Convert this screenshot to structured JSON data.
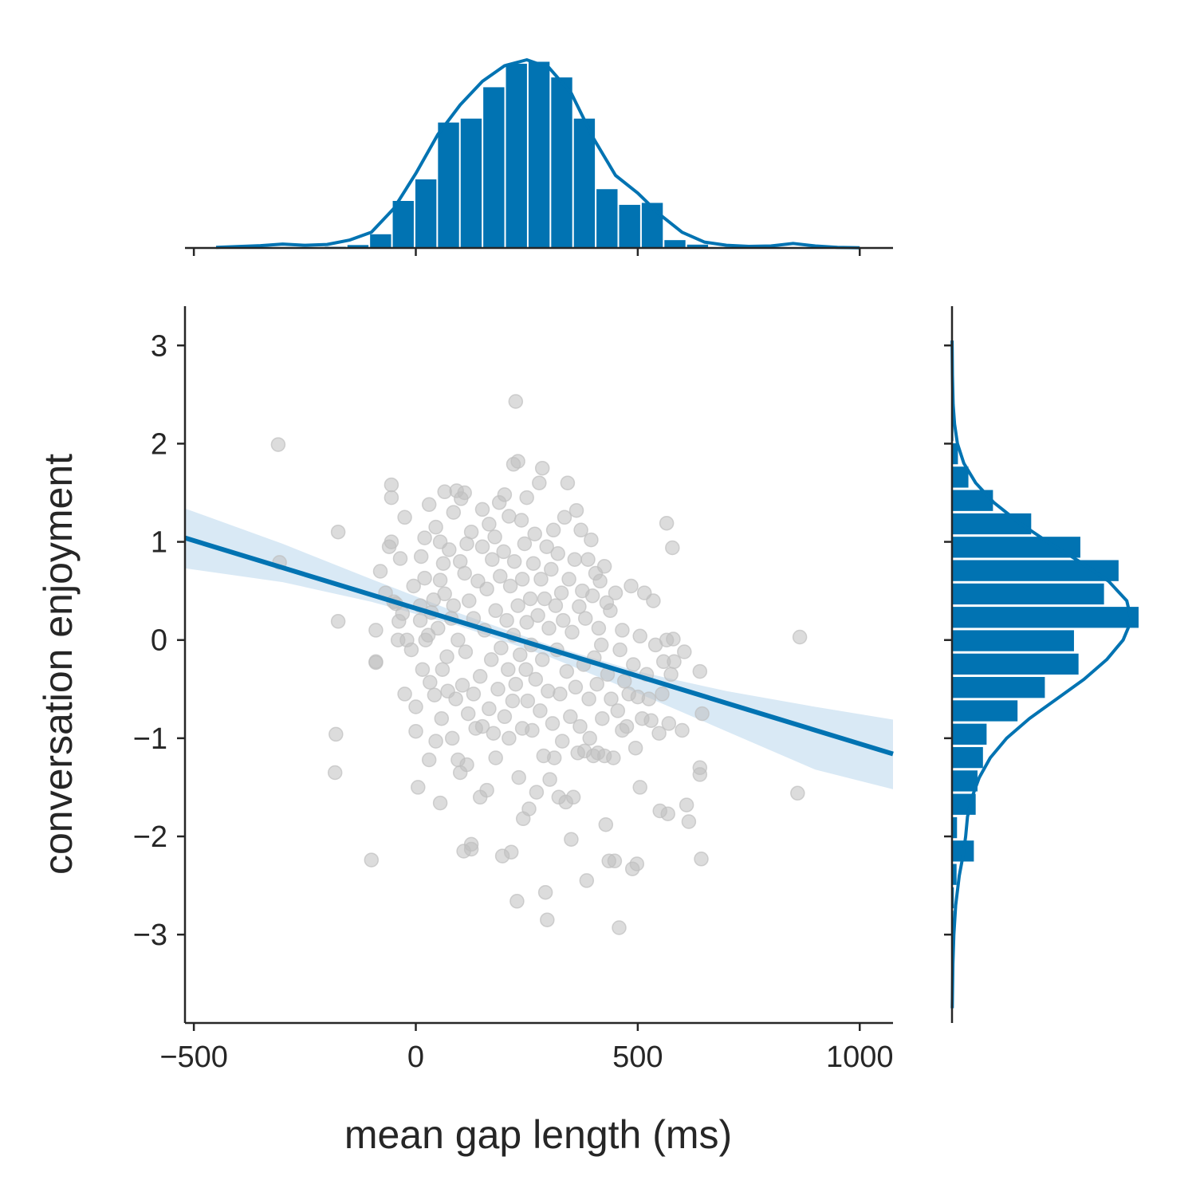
{
  "chart_data": {
    "type": "scatter",
    "xlabel": "mean gap length (ms)",
    "ylabel": "conversation enjoyment",
    "xlim": [
      -520,
      1075
    ],
    "ylim": [
      -3.9,
      3.4
    ],
    "xticks": [
      -500,
      0,
      500,
      1000
    ],
    "yticks": [
      -3,
      -2,
      -1,
      0,
      1,
      2,
      3
    ],
    "xtick_labels": [
      "−500",
      "0",
      "500",
      "1000"
    ],
    "ytick_labels": [
      "−3",
      "−2",
      "−1",
      "0",
      "1",
      "2",
      "3"
    ],
    "grid": false,
    "legend": "none",
    "colors": {
      "accent": "#0173b2",
      "points": "#bfbfbf",
      "band": "#cfe3f3",
      "axis": "#262626"
    },
    "scatter_points": [
      [
        -310,
        1.99
      ],
      [
        -307,
        0.79
      ],
      [
        -175,
        1.1
      ],
      [
        -180,
        -0.96
      ],
      [
        -182,
        -1.35
      ],
      [
        -175,
        0.19
      ],
      [
        -100,
        -2.24
      ],
      [
        -90,
        0.1
      ],
      [
        -90,
        -0.22
      ],
      [
        -90,
        -0.23
      ],
      [
        -80,
        0.7
      ],
      [
        -68,
        0.48
      ],
      [
        -60,
        0.95
      ],
      [
        -55,
        1.0
      ],
      [
        -55,
        1.58
      ],
      [
        -55,
        1.45
      ],
      [
        -50,
        0.39
      ],
      [
        -45,
        0.37
      ],
      [
        -40,
        -0.0
      ],
      [
        -38,
        0.19
      ],
      [
        -35,
        0.83
      ],
      [
        -30,
        0.27
      ],
      [
        -25,
        1.25
      ],
      [
        -25,
        -0.55
      ],
      [
        -20,
        0.0
      ],
      [
        -10,
        -0.1
      ],
      [
        -5,
        0.55
      ],
      [
        0,
        -0.68
      ],
      [
        0,
        -0.93
      ],
      [
        5,
        -1.5
      ],
      [
        10,
        0.35
      ],
      [
        10,
        0.2
      ],
      [
        12,
        0.85
      ],
      [
        15,
        -0.3
      ],
      [
        20,
        1.04
      ],
      [
        20,
        0.63
      ],
      [
        22,
        -0.0
      ],
      [
        28,
        0.05
      ],
      [
        30,
        -1.22
      ],
      [
        30,
        1.38
      ],
      [
        32,
        -0.43
      ],
      [
        35,
        0.28
      ],
      [
        40,
        0.41
      ],
      [
        42,
        -0.56
      ],
      [
        45,
        1.15
      ],
      [
        45,
        -1.03
      ],
      [
        50,
        0.12
      ],
      [
        55,
        0.61
      ],
      [
        55,
        -1.66
      ],
      [
        55,
        1.0
      ],
      [
        58,
        -0.8
      ],
      [
        60,
        -0.3
      ],
      [
        62,
        0.78
      ],
      [
        65,
        1.51
      ],
      [
        65,
        0.47
      ],
      [
        70,
        -0.17
      ],
      [
        72,
        -0.52
      ],
      [
        75,
        0.92
      ],
      [
        80,
        0.22
      ],
      [
        82,
        -1.0
      ],
      [
        85,
        1.3
      ],
      [
        85,
        0.35
      ],
      [
        90,
        -0.6
      ],
      [
        92,
        1.52
      ],
      [
        95,
        0.0
      ],
      [
        95,
        -1.22
      ],
      [
        100,
        0.8
      ],
      [
        100,
        -1.35
      ],
      [
        102,
        1.44
      ],
      [
        105,
        -0.46
      ],
      [
        108,
        -2.15
      ],
      [
        110,
        0.68
      ],
      [
        110,
        1.5
      ],
      [
        112,
        -0.12
      ],
      [
        115,
        -1.27
      ],
      [
        115,
        0.98
      ],
      [
        118,
        -0.75
      ],
      [
        120,
        0.4
      ],
      [
        125,
        -2.08
      ],
      [
        125,
        -2.13
      ],
      [
        125,
        1.1
      ],
      [
        130,
        -0.55
      ],
      [
        130,
        0.22
      ],
      [
        135,
        -0.9
      ],
      [
        140,
        0.6
      ],
      [
        145,
        -0.37
      ],
      [
        145,
        -1.6
      ],
      [
        150,
        0.95
      ],
      [
        150,
        1.33
      ],
      [
        150,
        -0.88
      ],
      [
        155,
        0.1
      ],
      [
        160,
        -1.53
      ],
      [
        160,
        0.52
      ],
      [
        165,
        -0.7
      ],
      [
        165,
        1.18
      ],
      [
        170,
        -0.2
      ],
      [
        172,
        0.82
      ],
      [
        175,
        -0.95
      ],
      [
        178,
        1.05
      ],
      [
        180,
        0.3
      ],
      [
        180,
        -1.2
      ],
      [
        185,
        -0.5
      ],
      [
        188,
        1.4
      ],
      [
        190,
        0.65
      ],
      [
        192,
        -0.08
      ],
      [
        195,
        -2.2
      ],
      [
        198,
        0.9
      ],
      [
        200,
        -0.78
      ],
      [
        200,
        1.48
      ],
      [
        205,
        0.2
      ],
      [
        208,
        -0.3
      ],
      [
        210,
        1.26
      ],
      [
        210,
        -1.0
      ],
      [
        213,
        0.55
      ],
      [
        215,
        -2.16
      ],
      [
        218,
        -0.62
      ],
      [
        220,
        1.79
      ],
      [
        220,
        0.05
      ],
      [
        222,
        0.8
      ],
      [
        225,
        -0.45
      ],
      [
        225,
        2.43
      ],
      [
        228,
        -2.66
      ],
      [
        230,
        1.82
      ],
      [
        230,
        0.35
      ],
      [
        232,
        -1.4
      ],
      [
        235,
        -0.15
      ],
      [
        238,
        1.22
      ],
      [
        240,
        0.62
      ],
      [
        240,
        -0.9
      ],
      [
        242,
        -1.82
      ],
      [
        245,
        0.98
      ],
      [
        248,
        -0.3
      ],
      [
        250,
        0.18
      ],
      [
        250,
        1.45
      ],
      [
        252,
        -0.62
      ],
      [
        255,
        -1.72
      ],
      [
        258,
        0.42
      ],
      [
        260,
        -0.05
      ],
      [
        262,
        -0.92
      ],
      [
        265,
        0.78
      ],
      [
        268,
        1.08
      ],
      [
        270,
        -0.4
      ],
      [
        272,
        -1.55
      ],
      [
        275,
        0.25
      ],
      [
        278,
        1.6
      ],
      [
        280,
        -0.72
      ],
      [
        282,
        0.62
      ],
      [
        285,
        -0.2
      ],
      [
        285,
        1.75
      ],
      [
        288,
        -1.18
      ],
      [
        290,
        0.42
      ],
      [
        292,
        -2.57
      ],
      [
        295,
        0.95
      ],
      [
        296,
        -2.85
      ],
      [
        298,
        -0.52
      ],
      [
        300,
        0.12
      ],
      [
        302,
        -1.42
      ],
      [
        305,
        0.72
      ],
      [
        308,
        -0.85
      ],
      [
        310,
        1.12
      ],
      [
        312,
        -1.2
      ],
      [
        315,
        0.35
      ],
      [
        318,
        -0.1
      ],
      [
        320,
        0.88
      ],
      [
        322,
        -1.6
      ],
      [
        325,
        -0.55
      ],
      [
        328,
        0.48
      ],
      [
        330,
        -1.03
      ],
      [
        332,
        0.2
      ],
      [
        335,
        1.25
      ],
      [
        338,
        -1.65
      ],
      [
        340,
        -0.32
      ],
      [
        342,
        1.6
      ],
      [
        345,
        0.62
      ],
      [
        348,
        -0.78
      ],
      [
        350,
        -2.03
      ],
      [
        352,
        0.08
      ],
      [
        355,
        -1.6
      ],
      [
        358,
        0.82
      ],
      [
        360,
        -0.48
      ],
      [
        362,
        1.32
      ],
      [
        365,
        -1.15
      ],
      [
        368,
        0.34
      ],
      [
        370,
        -0.88
      ],
      [
        372,
        1.12
      ],
      [
        375,
        0.5
      ],
      [
        378,
        -0.25
      ],
      [
        380,
        -1.13
      ],
      [
        382,
        0.22
      ],
      [
        385,
        -2.45
      ],
      [
        388,
        0.82
      ],
      [
        390,
        -0.6
      ],
      [
        392,
        -1.0
      ],
      [
        395,
        1.02
      ],
      [
        398,
        0.45
      ],
      [
        400,
        -1.18
      ],
      [
        402,
        -0.18
      ],
      [
        405,
        0.68
      ],
      [
        408,
        -0.45
      ],
      [
        410,
        -1.15
      ],
      [
        412,
        0.12
      ],
      [
        415,
        0.6
      ],
      [
        418,
        -0.05
      ],
      [
        420,
        -0.8
      ],
      [
        425,
        -1.18
      ],
      [
        425,
        0.75
      ],
      [
        428,
        -1.88
      ],
      [
        430,
        0.38
      ],
      [
        432,
        -0.35
      ],
      [
        435,
        -2.25
      ],
      [
        438,
        0.3
      ],
      [
        440,
        -0.6
      ],
      [
        445,
        -1.2
      ],
      [
        448,
        -2.25
      ],
      [
        450,
        0.48
      ],
      [
        455,
        -0.72
      ],
      [
        458,
        -2.93
      ],
      [
        460,
        -0.1
      ],
      [
        465,
        -0.92
      ],
      [
        465,
        0.1
      ],
      [
        470,
        -0.42
      ],
      [
        475,
        -0.88
      ],
      [
        480,
        -0.55
      ],
      [
        485,
        0.55
      ],
      [
        488,
        -2.33
      ],
      [
        490,
        -0.25
      ],
      [
        495,
        -1.1
      ],
      [
        498,
        -2.28
      ],
      [
        500,
        -0.58
      ],
      [
        505,
        0.04
      ],
      [
        505,
        -1.5
      ],
      [
        510,
        -0.8
      ],
      [
        515,
        0.48
      ],
      [
        520,
        -0.35
      ],
      [
        525,
        -0.6
      ],
      [
        530,
        -0.82
      ],
      [
        535,
        0.4
      ],
      [
        540,
        -0.05
      ],
      [
        548,
        -0.95
      ],
      [
        550,
        -1.74
      ],
      [
        555,
        -0.55
      ],
      [
        558,
        -0.22
      ],
      [
        565,
        0.0
      ],
      [
        565,
        1.19
      ],
      [
        568,
        -1.77
      ],
      [
        570,
        -0.85
      ],
      [
        575,
        -0.35
      ],
      [
        578,
        0.94
      ],
      [
        580,
        0.01
      ],
      [
        582,
        -0.22
      ],
      [
        600,
        -0.92
      ],
      [
        605,
        -0.12
      ],
      [
        610,
        -1.68
      ],
      [
        615,
        -1.85
      ],
      [
        640,
        -0.32
      ],
      [
        640,
        -1.3
      ],
      [
        640,
        -1.37
      ],
      [
        643,
        -2.23
      ],
      [
        645,
        -0.75
      ],
      [
        860,
        -1.56
      ],
      [
        865,
        0.03
      ]
    ],
    "regression_line": {
      "x": [
        -520,
        1075
      ],
      "y": [
        1.04,
        -1.16
      ]
    },
    "confidence_band": {
      "x": [
        -520,
        -300,
        -100,
        100,
        300,
        500,
        700,
        900,
        1075
      ],
      "upper": [
        1.34,
        0.98,
        0.62,
        0.27,
        -0.05,
        -0.32,
        -0.52,
        -0.68,
        -0.81
      ],
      "lower": [
        0.73,
        0.59,
        0.39,
        0.14,
        -0.17,
        -0.54,
        -0.93,
        -1.32,
        -1.52
      ]
    },
    "top_histogram": {
      "bin_width": 51,
      "bins_start": [
        -205,
        -154,
        -103,
        -52,
        -1,
        50,
        101,
        152,
        203,
        254,
        305,
        356,
        407,
        458,
        509,
        560,
        611
      ],
      "counts": [
        0.6,
        1.5,
        7,
        24,
        35,
        64,
        66,
        82,
        94,
        95,
        87,
        66,
        30,
        22,
        23,
        4,
        1.7
      ]
    },
    "top_kde": {
      "x": [
        -450,
        -350,
        -300,
        -250,
        -200,
        -150,
        -100,
        -50,
        0,
        50,
        100,
        150,
        200,
        250,
        300,
        350,
        400,
        450,
        500,
        550,
        600,
        650,
        700,
        750,
        800,
        850,
        900,
        950,
        1000
      ],
      "density": [
        0.3,
        1.2,
        2.0,
        1.4,
        1.8,
        4.0,
        8.0,
        20,
        38,
        58,
        73,
        85,
        93,
        96,
        92,
        79,
        56,
        37,
        28,
        17,
        8,
        3,
        1.4,
        0.8,
        1.0,
        2.3,
        1.0,
        0.3,
        0.1
      ]
    },
    "right_histogram": {
      "bin_height": 0.238,
      "bins_start": [
        -3.7,
        -3.462,
        -3.224,
        -2.986,
        -2.748,
        -2.51,
        -2.272,
        -2.034,
        -1.796,
        -1.558,
        -1.32,
        -1.082,
        -0.844,
        -0.606,
        -0.368,
        -0.13,
        0.108,
        0.346,
        0.584,
        0.822,
        1.06,
        1.298,
        1.536,
        1.774,
        2.012,
        2.25
      ],
      "counts": [
        0.3,
        0.6,
        1.0,
        1.5,
        2.0,
        5.0,
        24,
        5.5,
        26,
        28,
        34,
        38,
        72,
        102,
        139,
        134,
        205,
        167,
        183,
        141,
        87,
        45,
        18,
        6.5,
        1.5,
        0.5
      ]
    },
    "right_kde": {
      "y": [
        -3.75,
        -3.3,
        -3.0,
        -2.7,
        -2.4,
        -2.2,
        -2.0,
        -1.8,
        -1.6,
        -1.4,
        -1.2,
        -1.0,
        -0.8,
        -0.6,
        -0.4,
        -0.2,
        0.0,
        0.2,
        0.4,
        0.6,
        0.8,
        1.0,
        1.2,
        1.4,
        1.6,
        1.8,
        2.0,
        2.2,
        2.4,
        2.7,
        3.05
      ],
      "density": [
        0.3,
        1.0,
        2.0,
        4.0,
        8.0,
        12,
        15,
        17,
        22,
        30,
        42,
        60,
        85,
        115,
        145,
        170,
        188,
        197,
        192,
        172,
        140,
        105,
        73,
        46,
        26,
        13,
        6.0,
        2.8,
        1.2,
        0.4,
        0.1
      ]
    }
  }
}
